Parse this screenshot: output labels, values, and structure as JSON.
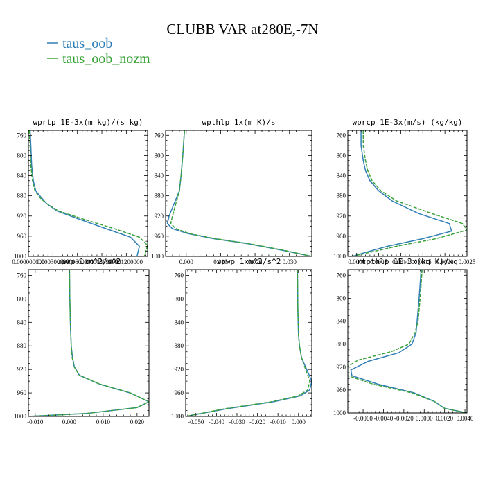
{
  "figure": {
    "title": "CLUBB VAR at280E,-7N",
    "colors": {
      "taus_oob": "#2f7fb6",
      "taus_oob_nozm": "#3aa23a"
    }
  },
  "chart_data": [
    {
      "type": "line",
      "title": "wprtp  1E-3x(m kg)/(s kg)",
      "xlim": [
        0,
        0.00146
      ],
      "ylim": [
        1000,
        750
      ],
      "y_ticks": [
        760,
        800,
        840,
        880,
        920,
        960,
        1000
      ],
      "x_ticks": [
        0,
        0.0003,
        0.0006,
        0.0009,
        0.0012
      ],
      "x_tick_labels": [
        "0.000000000",
        "0.000300000",
        "0.000600000",
        "0.000899999",
        "0.001200000"
      ],
      "legend": [
        {
          "name": "taus_oob"
        },
        {
          "name": "taus_oob_nozm"
        }
      ],
      "series": [
        {
          "name": "taus_oob",
          "dashed": false,
          "x": [
            2e-05,
            3e-05,
            4e-05,
            6e-05,
            9e-05,
            0.00014,
            0.00022,
            0.00035,
            0.0006,
            0.00095,
            0.00125,
            0.00136,
            0.00133
          ],
          "y": [
            750,
            780,
            820,
            850,
            870,
            880,
            895,
            910,
            925,
            945,
            962,
            980,
            1000
          ]
        },
        {
          "name": "taus_oob_nozm",
          "dashed": true,
          "x": [
            1e-05,
            2e-05,
            3e-05,
            5e-05,
            8e-05,
            0.00013,
            0.00022,
            0.00037,
            0.00065,
            0.00105,
            0.00136,
            0.00146,
            0.00142
          ],
          "y": [
            750,
            780,
            820,
            850,
            870,
            882,
            895,
            910,
            925,
            945,
            962,
            978,
            1000
          ]
        }
      ]
    },
    {
      "type": "line",
      "title": "wpthlp  1x(m K)/s",
      "xlim": [
        -0.006,
        0.0365
      ],
      "ylim": [
        1000,
        750
      ],
      "y_ticks": [
        760,
        800,
        840,
        880,
        920,
        960,
        1000
      ],
      "x_ticks": [
        0,
        0.01,
        0.02,
        0.03
      ],
      "x_tick_labels": [
        "0.000",
        "0.010",
        "0.020",
        "0.030"
      ],
      "series": [
        {
          "name": "taus_oob",
          "dashed": false,
          "x": [
            -0.0005,
            -0.001,
            -0.0015,
            -0.002,
            -0.0035,
            -0.005,
            -0.0055,
            -0.004,
            0.0005,
            0.008,
            0.018,
            0.028,
            0.0365
          ],
          "y": [
            750,
            800,
            840,
            870,
            895,
            920,
            935,
            945,
            955,
            965,
            975,
            988,
            1000
          ]
        },
        {
          "name": "taus_oob_nozm",
          "dashed": true,
          "x": [
            -0.0005,
            -0.001,
            -0.0015,
            -0.002,
            -0.003,
            -0.004,
            -0.0045,
            -0.003,
            0.001,
            0.0085,
            0.0185,
            0.0285,
            0.0365
          ],
          "y": [
            750,
            800,
            840,
            870,
            895,
            920,
            935,
            945,
            955,
            965,
            975,
            988,
            1000
          ]
        }
      ]
    },
    {
      "type": "line",
      "title": "wprcp  1E-3x(m/s) (kg/kg)",
      "xlim": [
        -0.0002,
        0.0025
      ],
      "ylim": [
        1000,
        750
      ],
      "y_ticks": [
        760,
        800,
        840,
        880,
        920,
        960,
        1000
      ],
      "x_ticks": [
        0,
        0.0005,
        0.001,
        0.0015,
        0.002,
        0.0025
      ],
      "x_tick_labels": [
        "0.0000",
        "0.0005",
        "0.0010",
        "0.0015",
        "0.0020",
        "0.0025"
      ],
      "series": [
        {
          "name": "taus_oob",
          "dashed": false,
          "x": [
            0.0001,
            0.0001,
            0.00015,
            0.0002,
            0.0003,
            0.0005,
            0.0008,
            0.0014,
            0.0021,
            0.00215,
            0.0015,
            0.0007,
            0.0002,
            -0.0001
          ],
          "y": [
            750,
            780,
            810,
            830,
            850,
            870,
            890,
            915,
            935,
            950,
            965,
            980,
            992,
            1000
          ]
        },
        {
          "name": "taus_oob_nozm",
          "dashed": true,
          "x": [
            0.00015,
            0.00015,
            0.0002,
            0.00025,
            0.00035,
            0.00055,
            0.0009,
            0.0017,
            0.0024,
            0.0025,
            0.0018,
            0.0009,
            0.0003,
            -0.0001
          ],
          "y": [
            750,
            780,
            810,
            830,
            850,
            870,
            890,
            915,
            935,
            948,
            965,
            980,
            992,
            1000
          ]
        }
      ]
    },
    {
      "type": "line",
      "title": "upwp  1xm^2/s^2",
      "xlim": [
        -0.012,
        0.0235
      ],
      "ylim": [
        1000,
        750
      ],
      "y_ticks": [
        760,
        800,
        840,
        880,
        920,
        960,
        1000
      ],
      "x_ticks": [
        -0.01,
        0,
        0.01,
        0.02
      ],
      "x_tick_labels": [
        "-0.010",
        "0.000",
        "0.010",
        "0.020"
      ],
      "series": [
        {
          "name": "taus_oob",
          "dashed": false,
          "x": [
            0.0001,
            0.0002,
            0.0004,
            0.0006,
            0.001,
            0.0015,
            0.003,
            0.009,
            0.018,
            0.0235,
            0.02,
            0.005,
            -0.012
          ],
          "y": [
            750,
            800,
            850,
            880,
            900,
            915,
            930,
            945,
            960,
            975,
            985,
            995,
            1000
          ]
        },
        {
          "name": "taus_oob_nozm",
          "dashed": true,
          "x": [
            0.0001,
            0.0002,
            0.0004,
            0.0006,
            0.0009,
            0.0014,
            0.003,
            0.009,
            0.018,
            0.0235,
            0.02,
            0.005,
            -0.012
          ],
          "y": [
            750,
            800,
            850,
            880,
            900,
            915,
            930,
            945,
            960,
            975,
            985,
            995,
            1000
          ]
        }
      ]
    },
    {
      "type": "line",
      "title": "vpwp  1xm^2/s^2",
      "xlim": [
        -0.055,
        0.0065
      ],
      "ylim": [
        1000,
        750
      ],
      "y_ticks": [
        760,
        800,
        840,
        880,
        920,
        960,
        1000
      ],
      "x_ticks": [
        -0.05,
        -0.04,
        -0.03,
        -0.02,
        -0.01,
        0
      ],
      "x_tick_labels": [
        "-0.050",
        "-0.040",
        "-0.030",
        "-0.020",
        "-0.010",
        "0.000"
      ],
      "series": [
        {
          "name": "taus_oob",
          "dashed": false,
          "x": [
            -0.0005,
            -0.0003,
            0,
            0.0005,
            0.0015,
            0.004,
            0.0065,
            0.0055,
            0.001,
            -0.012,
            -0.035,
            -0.055
          ],
          "y": [
            750,
            820,
            860,
            880,
            900,
            920,
            940,
            955,
            965,
            975,
            987,
            1000
          ]
        },
        {
          "name": "taus_oob_nozm",
          "dashed": true,
          "x": [
            -0.0005,
            -0.0003,
            0,
            0.0005,
            0.0015,
            0.0035,
            0.0055,
            0.0045,
            0,
            -0.013,
            -0.036,
            -0.055
          ],
          "y": [
            750,
            820,
            860,
            880,
            900,
            920,
            940,
            955,
            965,
            975,
            987,
            1000
          ]
        }
      ]
    },
    {
      "type": "line",
      "title": "rtpthlp  1E-3x(kg K)/kg",
      "xlim": [
        -0.0075,
        0.0042
      ],
      "ylim": [
        1000,
        750
      ],
      "y_ticks": [
        760,
        800,
        840,
        880,
        920,
        960,
        1000
      ],
      "x_ticks": [
        -0.006,
        -0.004,
        -0.002,
        0,
        0.002,
        0.004
      ],
      "x_tick_labels": [
        "-0.0060",
        "-0.0040",
        "-0.0020",
        "0.0000",
        "0.0020",
        "0.0040"
      ],
      "series": [
        {
          "name": "taus_oob",
          "dashed": false,
          "x": [
            -0.0003,
            -0.0005,
            -0.0007,
            -0.0008,
            -0.0012,
            -0.0025,
            -0.0055,
            -0.0072,
            -0.0071,
            -0.0045,
            -0.001,
            0.001,
            0.002,
            0.0042
          ],
          "y": [
            750,
            800,
            840,
            860,
            880,
            895,
            910,
            925,
            935,
            950,
            965,
            980,
            992,
            1000
          ]
        },
        {
          "name": "taus_oob_nozm",
          "dashed": true,
          "x": [
            -0.0002,
            -0.0004,
            -0.0006,
            -0.0009,
            -0.0015,
            -0.0032,
            -0.0065,
            -0.0076,
            -0.0075,
            -0.005,
            -0.0012,
            0.001,
            0.002,
            0.0042
          ],
          "y": [
            750,
            800,
            840,
            860,
            880,
            893,
            908,
            920,
            935,
            950,
            965,
            980,
            992,
            1000
          ]
        }
      ]
    }
  ]
}
